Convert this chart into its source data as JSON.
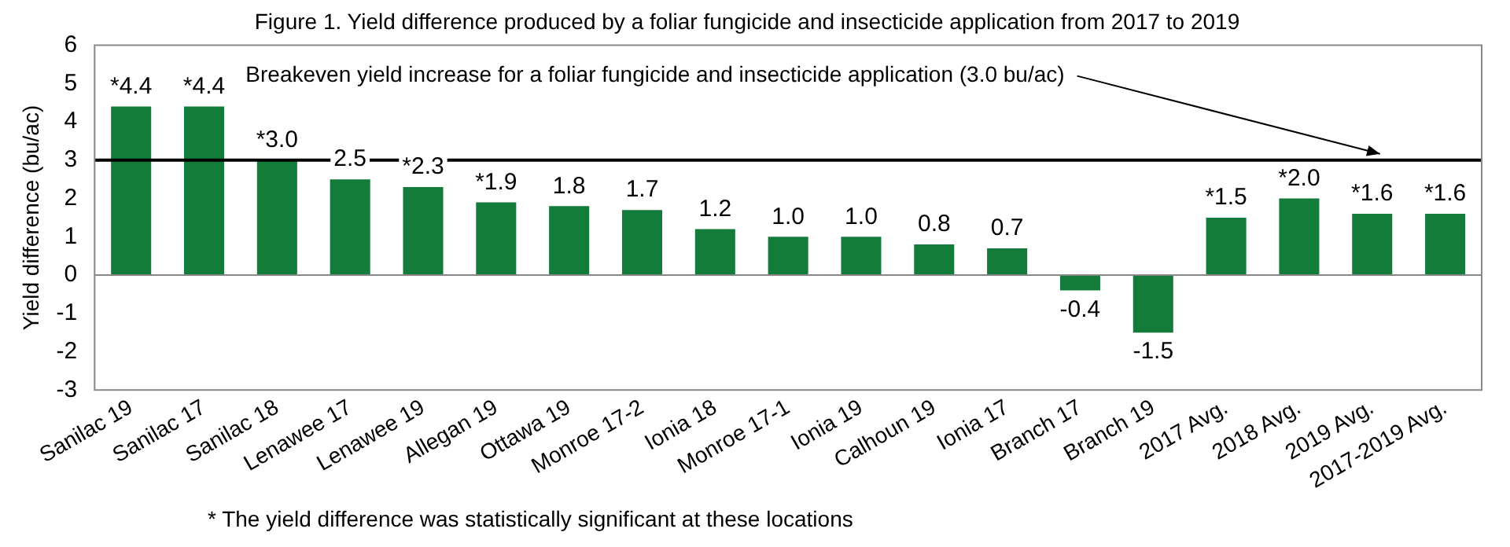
{
  "chart_data": {
    "type": "bar",
    "title": "Figure 1. Yield difference produced by a foliar fungicide and insecticide application from 2017 to 2019",
    "ylabel": "Yield difference (bu/ac)",
    "categories": [
      "Sanilac 19",
      "Sanilac 17",
      "Sanilac 18",
      "Lenawee 17",
      "Lenawee 19",
      "Allegan 19",
      "Ottawa 19",
      "Monroe 17-2",
      "Ionia 18",
      "Monroe 17-1",
      "Ionia 19",
      "Calhoun 19",
      "Ionia 17",
      "Branch 17",
      "Branch 19",
      "2017 Avg.",
      "2018 Avg.",
      "2019 Avg.",
      "2017-2019 Avg."
    ],
    "values": [
      4.4,
      4.4,
      3.0,
      2.5,
      2.3,
      1.9,
      1.8,
      1.7,
      1.2,
      1.0,
      1.0,
      0.8,
      0.7,
      -0.4,
      -1.5,
      1.5,
      2.0,
      1.6,
      1.6
    ],
    "value_labels": [
      "*4.4",
      "*4.4",
      "*3.0",
      "2.5",
      "*2.3",
      "*1.9",
      "1.8",
      "1.7",
      "1.2",
      "1.0",
      "1.0",
      "0.8",
      "0.7",
      "-0.4",
      "-1.5",
      "*1.5",
      "*2.0",
      "*1.6",
      "*1.6"
    ],
    "color": "#137c3b",
    "ylim": [
      -3,
      6
    ],
    "yticks": [
      -3,
      -2,
      -1,
      0,
      1,
      2,
      3,
      4,
      5,
      6
    ],
    "grid": false,
    "legend": false,
    "ref_lines": [
      {
        "axis": "y",
        "value": 3.0,
        "label": "Breakeven yield increase for a foliar fungicide and insecticide application (3.0 bu/ac)",
        "color": "#000000"
      }
    ],
    "annotations": [
      "* The yield difference was statistically significant at these locations"
    ]
  }
}
